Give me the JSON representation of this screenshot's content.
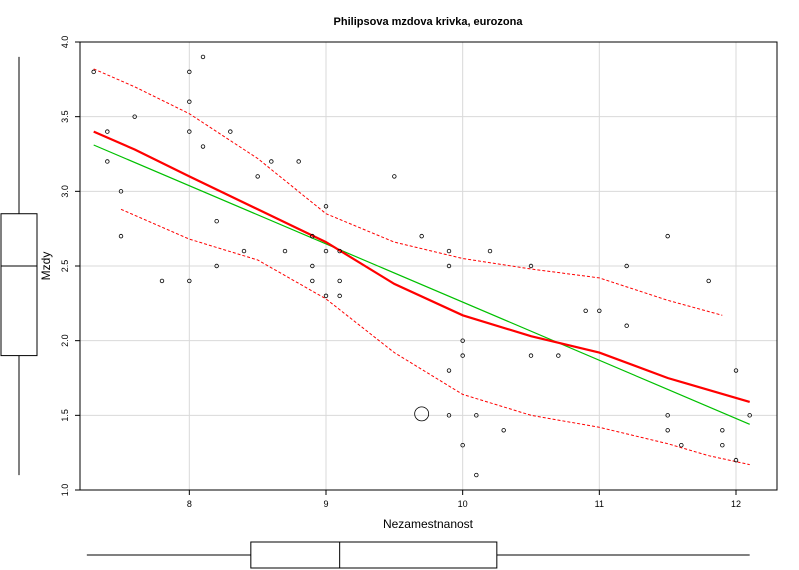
{
  "chart_data": {
    "type": "scatter",
    "title": "Philipsova mzdova krivka, eurozona",
    "xlabel": "Nezamestnanost",
    "ylabel": "Mzdy",
    "xlim": [
      7.2,
      12.3
    ],
    "ylim": [
      1.0,
      4.0
    ],
    "x_ticks": [
      "8",
      "9",
      "10",
      "11",
      "12"
    ],
    "y_ticks": [
      "1.0",
      "1.5",
      "2.0",
      "2.5",
      "3.0",
      "3.5",
      "4.0"
    ],
    "grid": true,
    "points": [
      [
        7.3,
        3.8
      ],
      [
        7.4,
        3.4
      ],
      [
        7.4,
        3.2
      ],
      [
        7.5,
        3.0
      ],
      [
        7.5,
        2.7
      ],
      [
        7.6,
        3.5
      ],
      [
        7.8,
        2.4
      ],
      [
        8.0,
        3.8
      ],
      [
        8.0,
        3.6
      ],
      [
        8.0,
        3.4
      ],
      [
        8.0,
        2.4
      ],
      [
        8.1,
        3.9
      ],
      [
        8.1,
        3.3
      ],
      [
        8.2,
        2.8
      ],
      [
        8.2,
        2.5
      ],
      [
        8.3,
        3.4
      ],
      [
        8.4,
        2.6
      ],
      [
        8.5,
        3.1
      ],
      [
        8.6,
        3.2
      ],
      [
        8.7,
        2.6
      ],
      [
        8.8,
        3.2
      ],
      [
        8.9,
        2.7
      ],
      [
        8.9,
        2.5
      ],
      [
        8.9,
        2.4
      ],
      [
        9.0,
        2.9
      ],
      [
        9.0,
        2.6
      ],
      [
        9.0,
        2.3
      ],
      [
        9.1,
        2.6
      ],
      [
        9.1,
        2.4
      ],
      [
        9.1,
        2.3
      ],
      [
        9.5,
        3.1
      ],
      [
        9.7,
        2.7
      ],
      [
        9.9,
        2.6
      ],
      [
        9.9,
        2.5
      ],
      [
        9.9,
        1.8
      ],
      [
        9.9,
        1.5
      ],
      [
        10.0,
        2.0
      ],
      [
        10.0,
        1.9
      ],
      [
        10.0,
        1.3
      ],
      [
        10.1,
        1.5
      ],
      [
        10.1,
        1.1
      ],
      [
        10.2,
        2.6
      ],
      [
        10.3,
        1.4
      ],
      [
        10.5,
        2.5
      ],
      [
        10.5,
        1.9
      ],
      [
        10.7,
        1.9
      ],
      [
        10.9,
        2.2
      ],
      [
        11.0,
        2.2
      ],
      [
        11.2,
        2.5
      ],
      [
        11.2,
        2.1
      ],
      [
        11.5,
        2.7
      ],
      [
        11.5,
        1.5
      ],
      [
        11.5,
        1.4
      ],
      [
        11.6,
        1.3
      ],
      [
        11.8,
        2.4
      ],
      [
        11.9,
        1.4
      ],
      [
        11.9,
        1.3
      ],
      [
        12.0,
        1.8
      ],
      [
        12.0,
        1.2
      ],
      [
        12.1,
        1.5
      ]
    ],
    "outlier_point": [
      9.7,
      1.51
    ],
    "linear_fit": {
      "color": "#00c000",
      "points": [
        [
          7.3,
          3.31
        ],
        [
          12.1,
          1.44
        ]
      ]
    },
    "smooth_fit": {
      "color": "#ff0000",
      "points": [
        [
          7.3,
          3.4
        ],
        [
          7.6,
          3.28
        ],
        [
          8.0,
          3.1
        ],
        [
          8.5,
          2.88
        ],
        [
          9.0,
          2.66
        ],
        [
          9.5,
          2.38
        ],
        [
          10.0,
          2.17
        ],
        [
          10.5,
          2.03
        ],
        [
          11.0,
          1.92
        ],
        [
          11.5,
          1.75
        ],
        [
          12.1,
          1.59
        ]
      ]
    },
    "smooth_upper": {
      "color": "#ff0000",
      "points": [
        [
          7.3,
          3.82
        ],
        [
          7.6,
          3.7
        ],
        [
          8.0,
          3.52
        ],
        [
          8.5,
          3.22
        ],
        [
          9.0,
          2.85
        ],
        [
          9.5,
          2.66
        ],
        [
          10.0,
          2.55
        ],
        [
          10.5,
          2.48
        ],
        [
          11.0,
          2.42
        ],
        [
          11.5,
          2.27
        ],
        [
          11.9,
          2.17
        ]
      ]
    },
    "smooth_lower": {
      "color": "#ff0000",
      "points": [
        [
          7.5,
          2.88
        ],
        [
          8.0,
          2.68
        ],
        [
          8.5,
          2.54
        ],
        [
          9.0,
          2.28
        ],
        [
          9.5,
          1.92
        ],
        [
          10.0,
          1.64
        ],
        [
          10.5,
          1.5
        ],
        [
          11.0,
          1.42
        ],
        [
          11.5,
          1.31
        ],
        [
          11.8,
          1.23
        ],
        [
          12.1,
          1.17
        ]
      ]
    },
    "y_boxplot": {
      "min": 1.1,
      "q1": 1.9,
      "median": 2.5,
      "q3": 2.85,
      "max": 3.9
    },
    "x_boxplot": {
      "min": 7.25,
      "q1": 8.45,
      "median": 9.1,
      "q3": 10.25,
      "max": 12.1
    }
  }
}
